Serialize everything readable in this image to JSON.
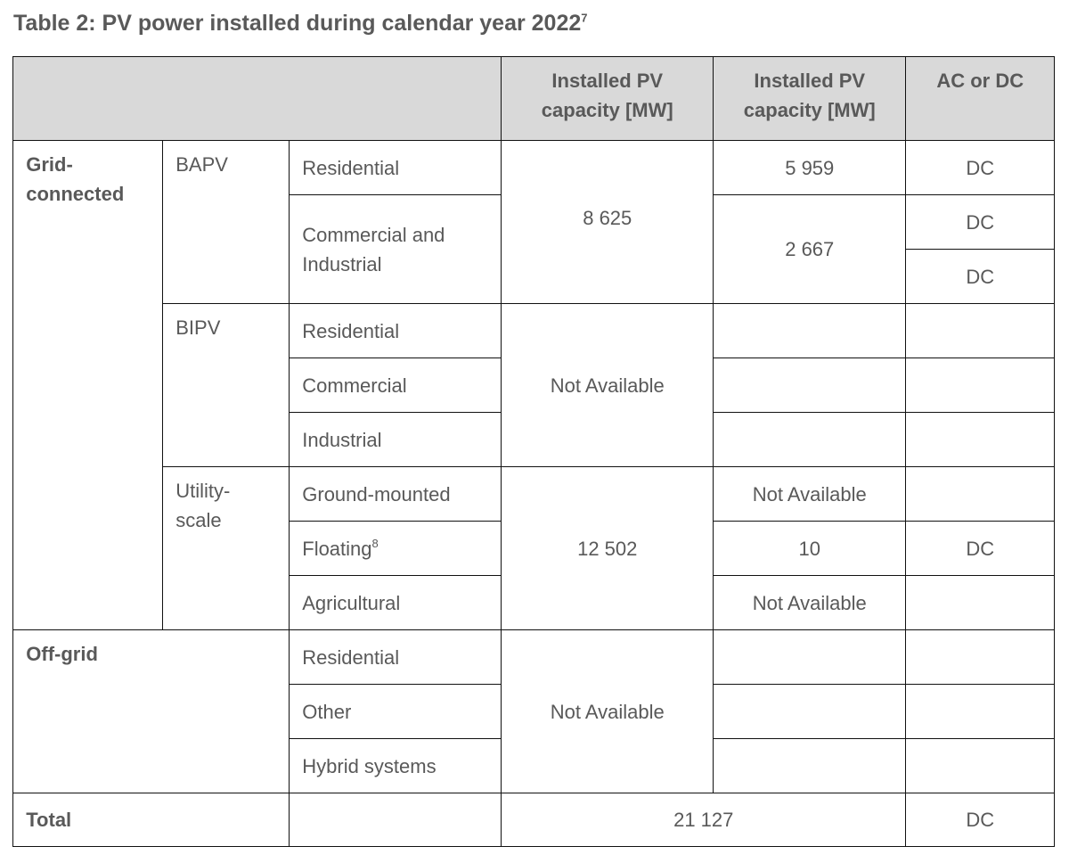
{
  "title": "Table 2: PV power installed during calendar year 2022",
  "title_footnote": "7",
  "header": {
    "col4": "Installed PV capacity [MW]",
    "col5": "Installed PV capacity [MW]",
    "col6": "AC or DC"
  },
  "grid": {
    "label": "Grid-connected",
    "bapv": {
      "label": "BAPV",
      "residential": "Residential",
      "commercial": "Commercial and Industrial",
      "total": "8 625",
      "res_value": "5 959",
      "com_value": "2 667",
      "acdc1": "DC",
      "acdc2": "DC",
      "acdc3": "DC"
    },
    "bipv": {
      "label": "BIPV",
      "residential": "Residential",
      "commercial": "Commercial",
      "industrial": "Industrial",
      "total": "Not Available"
    },
    "utility": {
      "label": "Utility-scale",
      "ground": "Ground-mounted",
      "floating": "Floating",
      "floating_footnote": "8",
      "agricultural": "Agricultural",
      "total": "12 502",
      "ground_value": "Not Available",
      "floating_value": "10",
      "agri_value": "Not Available",
      "floating_acdc": "DC"
    }
  },
  "offgrid": {
    "label": "Off-grid",
    "residential": "Residential",
    "other": "Other",
    "hybrid": "Hybrid systems",
    "total": "Not Available"
  },
  "total": {
    "label": "Total",
    "value": "21 127",
    "acdc": "DC"
  }
}
